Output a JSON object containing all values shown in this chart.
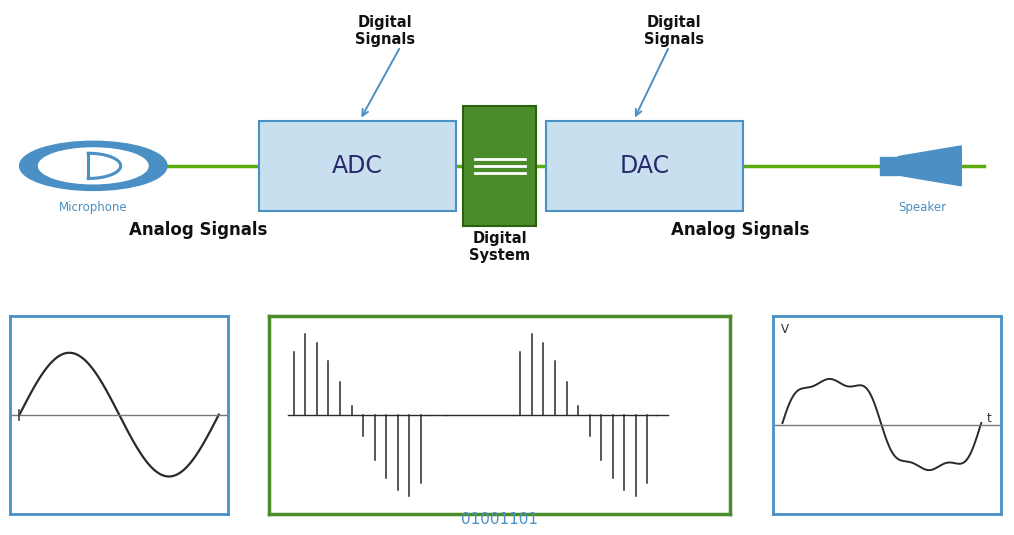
{
  "bg_color": "#ffffff",
  "diagram_color_green": "#4a8c2a",
  "diagram_color_blue_box": "#c8dff0",
  "diagram_color_blue_stroke": "#4a90c4",
  "diagram_line_color": "#5aaa10",
  "arrow_color": "#4a90c4",
  "text_color_black": "#111111",
  "text_color_blue": "#4a90c4",
  "microphone_color": "#4a90c4",
  "speaker_color": "#4a90c4",
  "adc_label": "ADC",
  "dac_label": "DAC",
  "digital_system_label": "Digital\nSystem",
  "digital_signals_left": "Digital\nSignals",
  "digital_signals_right": "Digital\nSignals",
  "analog_signals_left": "Analog Signals",
  "analog_signals_right": "Analog Signals",
  "microphone_label": "Microphone",
  "speaker_label": "Speaker",
  "binary_label": "01001101",
  "figsize": [
    10.14,
    5.35
  ],
  "dpi": 100
}
